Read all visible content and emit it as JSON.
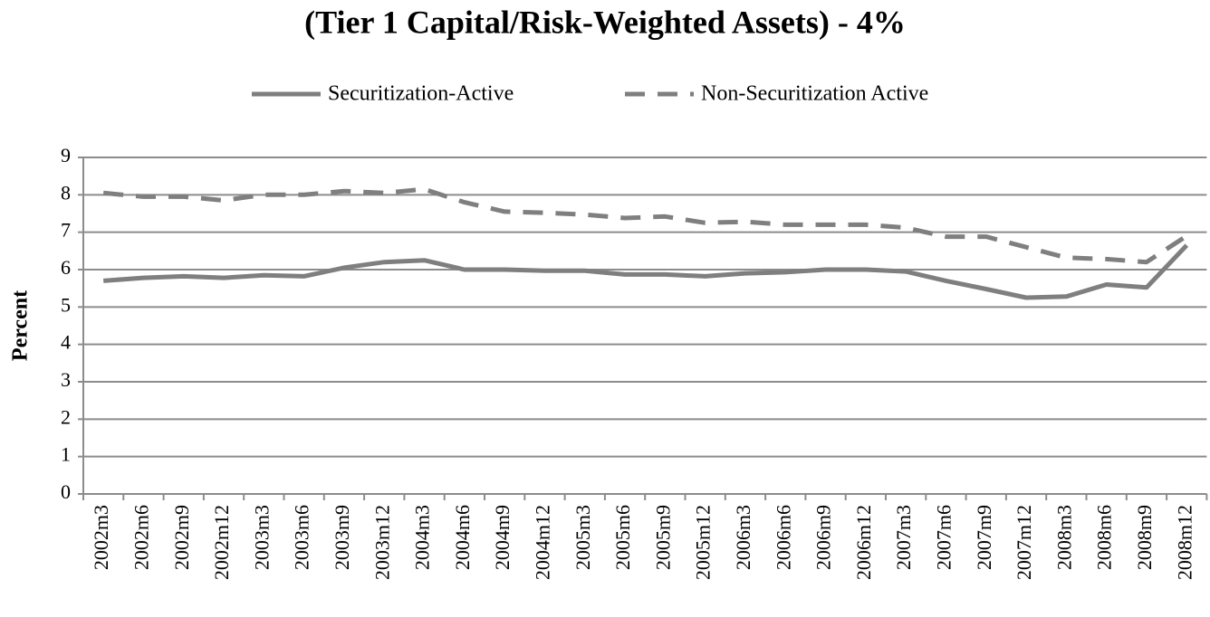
{
  "chart_data": {
    "type": "line",
    "title": "(Tier 1 Capital/Risk-Weighted Assets) - 4%",
    "y_label": "Percent",
    "categories": [
      "2002m3",
      "2002m6",
      "2002m9",
      "2002m12",
      "2003m3",
      "2003m6",
      "2003m9",
      "2003m12",
      "2004m3",
      "2004m6",
      "2004m9",
      "2004m12",
      "2005m3",
      "2005m6",
      "2005m9",
      "2005m12",
      "2006m3",
      "2006m6",
      "2006m9",
      "2006m12",
      "2007m3",
      "2007m6",
      "2007m9",
      "2007m12",
      "2008m3",
      "2008m6",
      "2008m9",
      "2008m12"
    ],
    "series": [
      {
        "name": "Securitization-Active",
        "color": "#7f7f7f",
        "dashed": false,
        "values": [
          5.7,
          5.78,
          5.82,
          5.78,
          5.85,
          5.82,
          6.05,
          6.2,
          6.25,
          6.0,
          6.0,
          5.97,
          5.97,
          5.87,
          5.87,
          5.82,
          5.9,
          5.93,
          6.0,
          6.0,
          5.95,
          5.7,
          5.48,
          5.25,
          5.28,
          5.6,
          5.52,
          6.65
        ]
      },
      {
        "name": "Non-Securitization Active",
        "color": "#7f7f7f",
        "dashed": true,
        "values": [
          8.05,
          7.95,
          7.95,
          7.85,
          8.0,
          8.0,
          8.1,
          8.05,
          8.15,
          7.8,
          7.55,
          7.52,
          7.47,
          7.38,
          7.42,
          7.25,
          7.28,
          7.2,
          7.2,
          7.2,
          7.12,
          6.88,
          6.88,
          6.6,
          6.32,
          6.28,
          6.2,
          6.9
        ]
      }
    ],
    "ylim": [
      0,
      9
    ],
    "yticks": [
      0,
      1,
      2,
      3,
      4,
      5,
      6,
      7,
      8,
      9
    ],
    "grid": true,
    "legend": "top"
  }
}
